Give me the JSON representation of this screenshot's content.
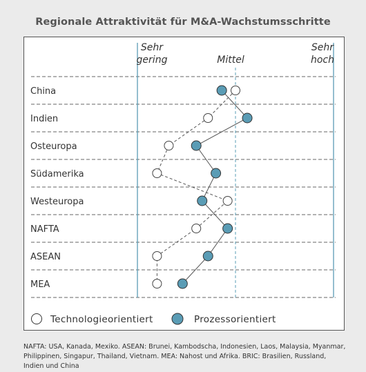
{
  "chart_data": {
    "type": "scatter",
    "title": "Regionale Attraktivität für M&A-Wachstumsschritte",
    "scale_labels": [
      {
        "lines": [
          "Sehr",
          "gering"
        ]
      },
      {
        "lines": [
          "Mittel"
        ]
      },
      {
        "lines": [
          "Sehr",
          "hoch"
        ]
      }
    ],
    "xlim": [
      0,
      1
    ],
    "regions": [
      "China",
      "Indien",
      "Osteuropa",
      "Südamerika",
      "Westeuropa",
      "NAFTA",
      "ASEAN",
      "MEA"
    ],
    "series": [
      {
        "name": "Technologieorientiert",
        "marker": "hollow",
        "line": "dashed",
        "values": [
          0.5,
          0.36,
          0.16,
          0.1,
          0.46,
          0.3,
          0.1,
          0.1
        ]
      },
      {
        "name": "Prozessorientiert",
        "marker": "filled",
        "line": "solid",
        "values": [
          0.43,
          0.56,
          0.3,
          0.4,
          0.33,
          0.46,
          0.36,
          0.23
        ]
      }
    ],
    "colors": {
      "filled": "#5a9cb5",
      "line": "#555555",
      "accent": "#5a9cb5"
    }
  },
  "footnote": "NAFTA: USA, Kanada, Mexiko. ASEAN: Brunei, Kambodscha, Indonesien, Laos, Malaysia, Myanmar, Philippinen, Singapur, Thailand, Vietnam. MEA: Nahost und Afrika. BRIC: Brasilien, Russland, Indien und China"
}
